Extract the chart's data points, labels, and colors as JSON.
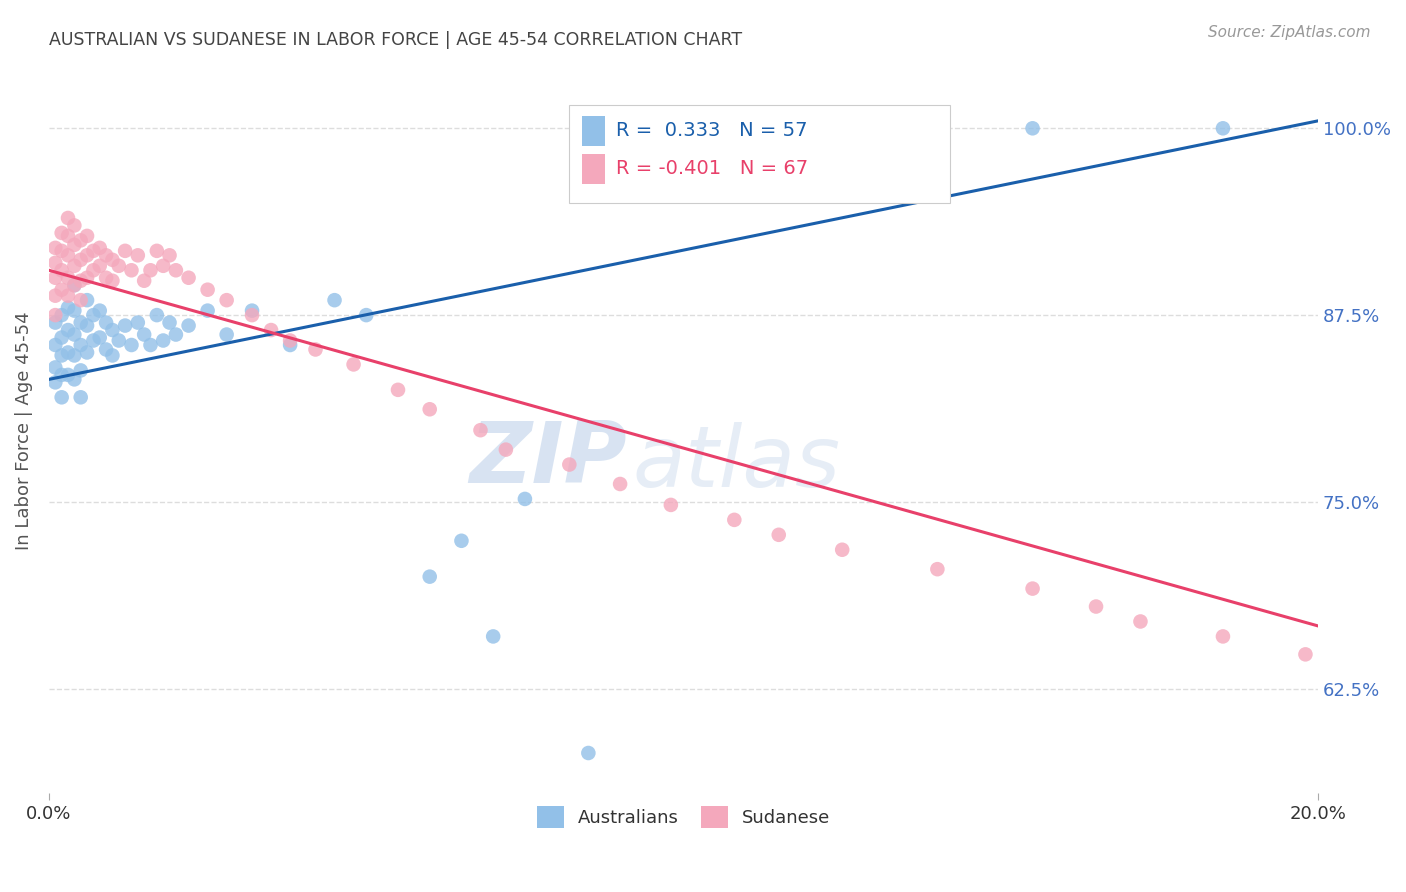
{
  "title": "AUSTRALIAN VS SUDANESE IN LABOR FORCE | AGE 45-54 CORRELATION CHART",
  "source": "Source: ZipAtlas.com",
  "ylabel": "In Labor Force | Age 45-54",
  "xmin": 0.0,
  "xmax": 0.2,
  "ymin": 0.555,
  "ymax": 1.04,
  "yticks": [
    0.625,
    0.75,
    0.875,
    1.0
  ],
  "ytick_labels": [
    "62.5%",
    "75.0%",
    "87.5%",
    "100.0%"
  ],
  "xtick_positions": [
    0.0,
    0.2
  ],
  "xtick_labels": [
    "0.0%",
    "20.0%"
  ],
  "blue_color": "#92C0E8",
  "pink_color": "#F4A8BC",
  "blue_line_color": "#1A5FAB",
  "pink_line_color": "#E8406A",
  "blue_R": 0.333,
  "blue_N": 57,
  "pink_R": -0.401,
  "pink_N": 67,
  "legend_label_blue": "Australians",
  "legend_label_pink": "Sudanese",
  "watermark_zip": "ZIP",
  "watermark_atlas": "atlas",
  "background_color": "#FFFFFF",
  "grid_color": "#DDDDDD",
  "title_color": "#444444",
  "axis_label_color": "#555555",
  "right_tick_color": "#4472C4",
  "blue_line_y0": 0.832,
  "blue_line_y1": 1.005,
  "pink_line_y0": 0.905,
  "pink_line_y1": 0.667,
  "blue_x": [
    0.001,
    0.001,
    0.001,
    0.001,
    0.002,
    0.002,
    0.002,
    0.002,
    0.002,
    0.003,
    0.003,
    0.003,
    0.003,
    0.004,
    0.004,
    0.004,
    0.004,
    0.004,
    0.005,
    0.005,
    0.005,
    0.005,
    0.006,
    0.006,
    0.006,
    0.007,
    0.007,
    0.008,
    0.008,
    0.009,
    0.009,
    0.01,
    0.01,
    0.011,
    0.012,
    0.013,
    0.014,
    0.015,
    0.016,
    0.017,
    0.018,
    0.019,
    0.02,
    0.022,
    0.025,
    0.028,
    0.032,
    0.038,
    0.045,
    0.05,
    0.06,
    0.065,
    0.07,
    0.075,
    0.085,
    0.155,
    0.185
  ],
  "blue_y": [
    0.87,
    0.855,
    0.84,
    0.83,
    0.875,
    0.86,
    0.848,
    0.835,
    0.82,
    0.88,
    0.865,
    0.85,
    0.835,
    0.895,
    0.878,
    0.862,
    0.848,
    0.832,
    0.87,
    0.855,
    0.838,
    0.82,
    0.885,
    0.868,
    0.85,
    0.875,
    0.858,
    0.878,
    0.86,
    0.87,
    0.852,
    0.865,
    0.848,
    0.858,
    0.868,
    0.855,
    0.87,
    0.862,
    0.855,
    0.875,
    0.858,
    0.87,
    0.862,
    0.868,
    0.878,
    0.862,
    0.878,
    0.855,
    0.885,
    0.875,
    0.7,
    0.724,
    0.66,
    0.752,
    0.582,
    1.0,
    1.0
  ],
  "pink_x": [
    0.001,
    0.001,
    0.001,
    0.001,
    0.001,
    0.002,
    0.002,
    0.002,
    0.002,
    0.003,
    0.003,
    0.003,
    0.003,
    0.003,
    0.004,
    0.004,
    0.004,
    0.004,
    0.005,
    0.005,
    0.005,
    0.005,
    0.006,
    0.006,
    0.006,
    0.007,
    0.007,
    0.008,
    0.008,
    0.009,
    0.009,
    0.01,
    0.01,
    0.011,
    0.012,
    0.013,
    0.014,
    0.015,
    0.016,
    0.017,
    0.018,
    0.019,
    0.02,
    0.022,
    0.025,
    0.028,
    0.032,
    0.035,
    0.038,
    0.042,
    0.048,
    0.055,
    0.06,
    0.068,
    0.072,
    0.082,
    0.09,
    0.098,
    0.108,
    0.115,
    0.125,
    0.14,
    0.155,
    0.165,
    0.172,
    0.185,
    0.198
  ],
  "pink_y": [
    0.92,
    0.91,
    0.9,
    0.888,
    0.875,
    0.93,
    0.918,
    0.905,
    0.892,
    0.94,
    0.928,
    0.915,
    0.9,
    0.888,
    0.935,
    0.922,
    0.908,
    0.895,
    0.925,
    0.912,
    0.898,
    0.885,
    0.928,
    0.915,
    0.9,
    0.918,
    0.905,
    0.92,
    0.908,
    0.915,
    0.9,
    0.912,
    0.898,
    0.908,
    0.918,
    0.905,
    0.915,
    0.898,
    0.905,
    0.918,
    0.908,
    0.915,
    0.905,
    0.9,
    0.892,
    0.885,
    0.875,
    0.865,
    0.858,
    0.852,
    0.842,
    0.825,
    0.812,
    0.798,
    0.785,
    0.775,
    0.762,
    0.748,
    0.738,
    0.728,
    0.718,
    0.705,
    0.692,
    0.68,
    0.67,
    0.66,
    0.648
  ]
}
